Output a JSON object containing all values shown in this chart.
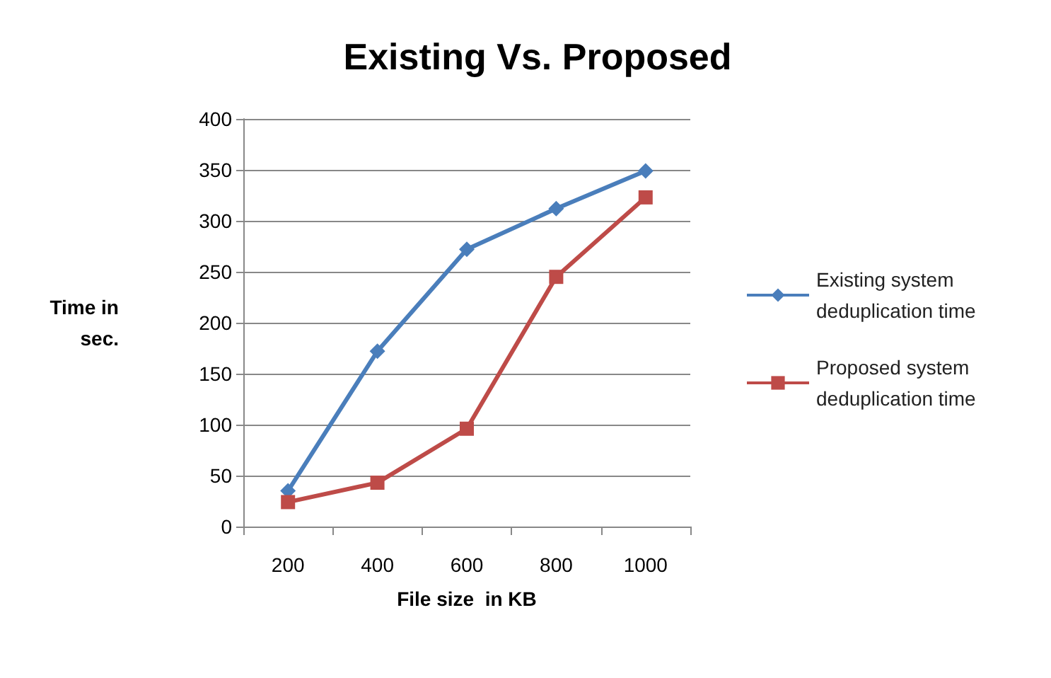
{
  "chart_data": {
    "type": "line",
    "title": "Existing Vs. Proposed",
    "xlabel": "File size  in KB",
    "ylabel": "Time in\nsec.",
    "categories": [
      "200",
      "400",
      "600",
      "800",
      "1000"
    ],
    "series": [
      {
        "name": "Existing system\ndeduplication time",
        "color": "#4a7ebb",
        "marker": "diamond",
        "values": [
          35,
          172,
          272,
          312,
          349
        ]
      },
      {
        "name": "Proposed system\ndeduplication time",
        "color": "#be4b48",
        "marker": "square",
        "values": [
          24,
          43,
          96,
          245,
          323
        ]
      }
    ],
    "ylim": [
      0,
      400
    ],
    "yticks": [
      0,
      50,
      100,
      150,
      200,
      250,
      300,
      350,
      400
    ],
    "grid": "y",
    "legend": "right",
    "line_style": "solid"
  }
}
